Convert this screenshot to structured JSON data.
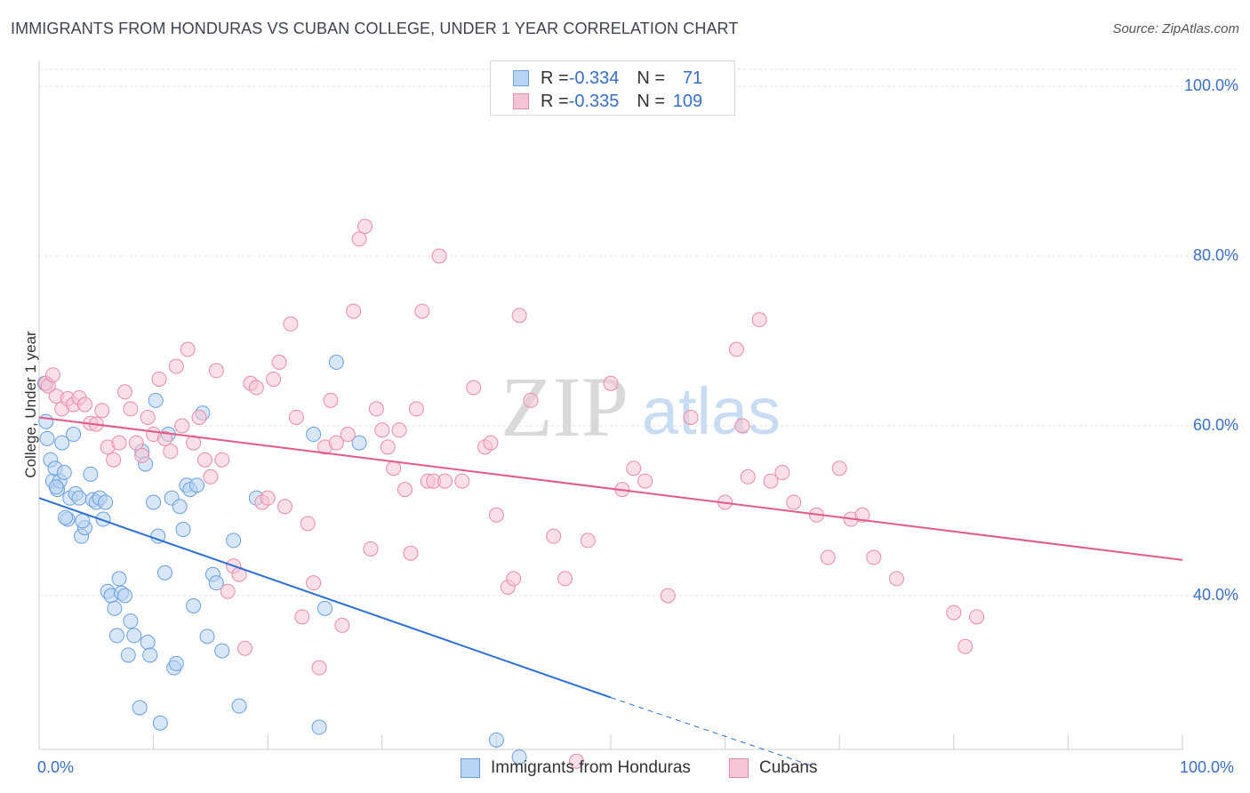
{
  "title": "IMMIGRANTS FROM HONDURAS VS CUBAN COLLEGE, UNDER 1 YEAR CORRELATION CHART",
  "source": "Source: ZipAtlas.com",
  "watermark": {
    "zip": "ZIP",
    "atlas": "atlas"
  },
  "legend": {
    "series": [
      {
        "r_label": "R = ",
        "r_value": "-0.334",
        "n_label": "N = ",
        "n_value": "71",
        "fill": "#b8d3f3",
        "stroke": "#6a9ee0"
      },
      {
        "r_label": "R = ",
        "r_value": "-0.335",
        "n_label": "N = ",
        "n_value": "109",
        "fill": "#f7c4d4",
        "stroke": "#e98bab"
      }
    ]
  },
  "chart_data": {
    "type": "scatter",
    "title": "IMMIGRANTS FROM HONDURAS VS CUBAN COLLEGE, UNDER 1 YEAR CORRELATION CHART",
    "xlabel": "",
    "ylabel": "College, Under 1 year",
    "xlim": [
      0,
      100
    ],
    "ylim": [
      20,
      100
    ],
    "x_tick_labels": [
      "0.0%",
      "100.0%"
    ],
    "y_tick_labels": [
      {
        "value": 100,
        "label": "100.0%"
      },
      {
        "value": 80,
        "label": "80.0%"
      },
      {
        "value": 60,
        "label": "60.0%"
      },
      {
        "value": 40,
        "label": "40.0%"
      }
    ],
    "grid": true,
    "series": [
      {
        "name": "Immigrants from Honduras",
        "color": "#6a9ee0",
        "fill": "#b8d3f3",
        "trend_color": "#2d6fd6",
        "trend": {
          "x0": 0,
          "y0": 51.5,
          "x1": 50,
          "y1": 28.0,
          "dash_x1": 67.5,
          "dash_y1": 20.0
        },
        "points": [
          [
            0.5,
            65
          ],
          [
            0.7,
            58.5
          ],
          [
            0.6,
            60.5
          ],
          [
            1,
            56
          ],
          [
            1.2,
            53.5
          ],
          [
            1.4,
            55
          ],
          [
            1.6,
            52.5
          ],
          [
            1.8,
            53.5
          ],
          [
            2,
            58
          ],
          [
            2.2,
            54.5
          ],
          [
            2.5,
            49
          ],
          [
            2.7,
            51.5
          ],
          [
            3,
            59
          ],
          [
            3.2,
            52
          ],
          [
            3.5,
            51.5
          ],
          [
            3.7,
            47
          ],
          [
            4,
            48
          ],
          [
            4.5,
            54.3
          ],
          [
            4.7,
            51.3
          ],
          [
            5,
            51
          ],
          [
            5.3,
            51.5
          ],
          [
            5.6,
            49
          ],
          [
            5.8,
            51
          ],
          [
            6,
            40.5
          ],
          [
            6.3,
            40
          ],
          [
            6.6,
            38.5
          ],
          [
            6.8,
            35.3
          ],
          [
            7,
            42
          ],
          [
            7.2,
            40.3
          ],
          [
            7.5,
            40
          ],
          [
            7.8,
            33
          ],
          [
            8,
            37
          ],
          [
            8.3,
            35.3
          ],
          [
            8.8,
            26.8
          ],
          [
            9,
            57
          ],
          [
            9.3,
            55.5
          ],
          [
            9.5,
            34.5
          ],
          [
            9.7,
            33
          ],
          [
            10,
            51
          ],
          [
            10.2,
            63
          ],
          [
            10.4,
            47
          ],
          [
            10.6,
            25
          ],
          [
            11,
            42.7
          ],
          [
            11.3,
            59
          ],
          [
            11.6,
            51.5
          ],
          [
            11.8,
            31.5
          ],
          [
            12,
            32
          ],
          [
            12.3,
            50.5
          ],
          [
            12.6,
            47.8
          ],
          [
            12.9,
            53
          ],
          [
            13.2,
            52.5
          ],
          [
            13.5,
            38.8
          ],
          [
            13.8,
            53
          ],
          [
            14.3,
            61.5
          ],
          [
            14.7,
            35.2
          ],
          [
            15.2,
            42.5
          ],
          [
            15.5,
            41.5
          ],
          [
            16,
            33.5
          ],
          [
            17,
            46.5
          ],
          [
            17.5,
            27
          ],
          [
            19,
            51.5
          ],
          [
            24,
            59
          ],
          [
            24.5,
            24.5
          ],
          [
            25,
            38.5
          ],
          [
            26,
            67.5
          ],
          [
            28,
            58
          ],
          [
            40,
            23
          ],
          [
            42,
            21
          ],
          [
            3.8,
            48.8
          ],
          [
            1.5,
            52.8
          ],
          [
            2.3,
            49.2
          ]
        ]
      },
      {
        "name": "Cubans",
        "color": "#e98bab",
        "fill": "#f7c4d4",
        "trend_color": "#e05a8c",
        "trend": {
          "x0": 0,
          "y0": 61.0,
          "x1": 100,
          "y1": 44.2
        },
        "points": [
          [
            0.6,
            65
          ],
          [
            0.8,
            64.7
          ],
          [
            1.2,
            66
          ],
          [
            1.5,
            63.5
          ],
          [
            2,
            62
          ],
          [
            2.5,
            63.2
          ],
          [
            3,
            62.5
          ],
          [
            3.5,
            63.3
          ],
          [
            4,
            62.5
          ],
          [
            4.5,
            60.3
          ],
          [
            5,
            60.2
          ],
          [
            5.5,
            61.8
          ],
          [
            6,
            57.5
          ],
          [
            6.5,
            56
          ],
          [
            7,
            58
          ],
          [
            7.5,
            64
          ],
          [
            8,
            62
          ],
          [
            8.5,
            58
          ],
          [
            9,
            56.5
          ],
          [
            9.5,
            61
          ],
          [
            10,
            59
          ],
          [
            10.5,
            65.5
          ],
          [
            11,
            58.5
          ],
          [
            11.5,
            57
          ],
          [
            12,
            67
          ],
          [
            12.5,
            60
          ],
          [
            13,
            69
          ],
          [
            13.5,
            58
          ],
          [
            14,
            61
          ],
          [
            14.5,
            56
          ],
          [
            15,
            54
          ],
          [
            15.5,
            66.5
          ],
          [
            16,
            56
          ],
          [
            16.5,
            40.5
          ],
          [
            17,
            43.5
          ],
          [
            17.5,
            42.5
          ],
          [
            18,
            33.8
          ],
          [
            18.5,
            65
          ],
          [
            19,
            64.5
          ],
          [
            19.5,
            51
          ],
          [
            20,
            51.5
          ],
          [
            20.5,
            65.5
          ],
          [
            21,
            67.5
          ],
          [
            21.5,
            50.5
          ],
          [
            22,
            72
          ],
          [
            22.5,
            61
          ],
          [
            23,
            37.5
          ],
          [
            23.5,
            48.5
          ],
          [
            24,
            41.5
          ],
          [
            24.5,
            31.5
          ],
          [
            25,
            57.5
          ],
          [
            25.5,
            63
          ],
          [
            26,
            58
          ],
          [
            26.5,
            36.5
          ],
          [
            27,
            59
          ],
          [
            27.5,
            73.5
          ],
          [
            28,
            82
          ],
          [
            28.5,
            83.5
          ],
          [
            29,
            45.5
          ],
          [
            29.5,
            62
          ],
          [
            30,
            59.5
          ],
          [
            30.5,
            57.5
          ],
          [
            31,
            55
          ],
          [
            31.5,
            59.5
          ],
          [
            32,
            52.5
          ],
          [
            32.5,
            45
          ],
          [
            33,
            62
          ],
          [
            33.5,
            73.5
          ],
          [
            34,
            53.5
          ],
          [
            34.5,
            53.5
          ],
          [
            35,
            80
          ],
          [
            35.5,
            53.5
          ],
          [
            37,
            53.5
          ],
          [
            38,
            64.5
          ],
          [
            39,
            57.5
          ],
          [
            39.5,
            58
          ],
          [
            40,
            49.5
          ],
          [
            41,
            41
          ],
          [
            41.5,
            42
          ],
          [
            42,
            73
          ],
          [
            45,
            47
          ],
          [
            46,
            42
          ],
          [
            47,
            20.5
          ],
          [
            48,
            46.5
          ],
          [
            51,
            52.5
          ],
          [
            52,
            55
          ],
          [
            53,
            53.5
          ],
          [
            55,
            40
          ],
          [
            57,
            61
          ],
          [
            60,
            51
          ],
          [
            61,
            69
          ],
          [
            62,
            54
          ],
          [
            63,
            72.5
          ],
          [
            64,
            53.5
          ],
          [
            65,
            54.5
          ],
          [
            66,
            51
          ],
          [
            68,
            49.5
          ],
          [
            69,
            44.5
          ],
          [
            70,
            55
          ],
          [
            71,
            49
          ],
          [
            72,
            49.5
          ],
          [
            73,
            44.5
          ],
          [
            75,
            42
          ],
          [
            80,
            38
          ],
          [
            81,
            34
          ],
          [
            82,
            37.5
          ],
          [
            50,
            65
          ],
          [
            43,
            63
          ],
          [
            61.5,
            60
          ]
        ]
      }
    ]
  },
  "bottom_legend": [
    {
      "label": "Immigrants from Honduras",
      "fill": "#b8d3f3",
      "stroke": "#6a9ee0"
    },
    {
      "label": "Cubans",
      "fill": "#f7c4d4",
      "stroke": "#e98bab"
    }
  ]
}
